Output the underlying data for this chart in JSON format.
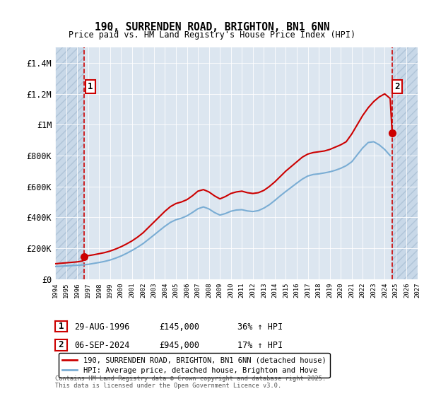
{
  "title": "190, SURRENDEN ROAD, BRIGHTON, BN1 6NN",
  "subtitle": "Price paid vs. HM Land Registry's House Price Index (HPI)",
  "xlim_start": 1994,
  "xlim_end": 2027,
  "ylim_min": 0,
  "ylim_max": 1500000,
  "yticks": [
    0,
    200000,
    400000,
    600000,
    800000,
    1000000,
    1200000,
    1400000
  ],
  "ytick_labels": [
    "£0",
    "£200K",
    "£400K",
    "£600K",
    "£800K",
    "£1M",
    "£1.2M",
    "£1.4M"
  ],
  "bg_color": "#dce6f0",
  "hatch_color": "#c8d8e8",
  "grid_color": "#ffffff",
  "red_line_color": "#cc0000",
  "blue_line_color": "#7aadd4",
  "sale1_year": 1996.66,
  "sale1_price": 145000,
  "sale2_year": 2024.68,
  "sale2_price": 945000,
  "annotation1_label": "1",
  "annotation2_label": "2",
  "legend_red": "190, SURRENDEN ROAD, BRIGHTON, BN1 6NN (detached house)",
  "legend_blue": "HPI: Average price, detached house, Brighton and Hove",
  "table_row1": [
    "1",
    "29-AUG-1996",
    "£145,000",
    "36% ↑ HPI"
  ],
  "table_row2": [
    "2",
    "06-SEP-2024",
    "£945,000",
    "17% ↑ HPI"
  ],
  "footer": "Contains HM Land Registry data © Crown copyright and database right 2025.\nThis data is licensed under the Open Government Licence v3.0.",
  "red_hpi_years": [
    1994.0,
    1994.5,
    1995.0,
    1995.5,
    1996.0,
    1996.5,
    1996.66,
    1997.0,
    1997.5,
    1998.0,
    1998.5,
    1999.0,
    1999.5,
    2000.0,
    2000.5,
    2001.0,
    2001.5,
    2002.0,
    2002.5,
    2003.0,
    2003.5,
    2004.0,
    2004.5,
    2005.0,
    2005.5,
    2006.0,
    2006.5,
    2007.0,
    2007.5,
    2008.0,
    2008.5,
    2009.0,
    2009.5,
    2010.0,
    2010.5,
    2011.0,
    2011.5,
    2012.0,
    2012.5,
    2013.0,
    2013.5,
    2014.0,
    2014.5,
    2015.0,
    2015.5,
    2016.0,
    2016.5,
    2017.0,
    2017.5,
    2018.0,
    2018.5,
    2019.0,
    2019.5,
    2020.0,
    2020.5,
    2021.0,
    2021.5,
    2022.0,
    2022.5,
    2023.0,
    2023.5,
    2024.0,
    2024.5,
    2024.68
  ],
  "red_hpi_values": [
    100000,
    103000,
    106000,
    109000,
    112000,
    118000,
    145000,
    152000,
    158000,
    165000,
    172000,
    182000,
    195000,
    210000,
    228000,
    248000,
    272000,
    300000,
    335000,
    370000,
    405000,
    440000,
    470000,
    490000,
    500000,
    515000,
    540000,
    570000,
    580000,
    565000,
    540000,
    520000,
    535000,
    555000,
    565000,
    570000,
    560000,
    555000,
    560000,
    575000,
    600000,
    630000,
    665000,
    700000,
    730000,
    760000,
    790000,
    810000,
    820000,
    825000,
    830000,
    840000,
    855000,
    870000,
    890000,
    940000,
    1000000,
    1060000,
    1110000,
    1150000,
    1180000,
    1200000,
    1170000,
    945000
  ],
  "blue_hpi_years": [
    1994.0,
    1994.5,
    1995.0,
    1995.5,
    1996.0,
    1996.5,
    1997.0,
    1997.5,
    1998.0,
    1998.5,
    1999.0,
    1999.5,
    2000.0,
    2000.5,
    2001.0,
    2001.5,
    2002.0,
    2002.5,
    2003.0,
    2003.5,
    2004.0,
    2004.5,
    2005.0,
    2005.5,
    2006.0,
    2006.5,
    2007.0,
    2007.5,
    2008.0,
    2008.5,
    2009.0,
    2009.5,
    2010.0,
    2010.5,
    2011.0,
    2011.5,
    2012.0,
    2012.5,
    2013.0,
    2013.5,
    2014.0,
    2014.5,
    2015.0,
    2015.5,
    2016.0,
    2016.5,
    2017.0,
    2017.5,
    2018.0,
    2018.5,
    2019.0,
    2019.5,
    2020.0,
    2020.5,
    2021.0,
    2021.5,
    2022.0,
    2022.5,
    2023.0,
    2023.5,
    2024.0,
    2024.5
  ],
  "blue_hpi_values": [
    82000,
    84000,
    86000,
    88000,
    90000,
    92000,
    96000,
    102000,
    108000,
    115000,
    124000,
    136000,
    150000,
    167000,
    186000,
    207000,
    230000,
    258000,
    286000,
    315000,
    343000,
    368000,
    385000,
    395000,
    410000,
    432000,
    456000,
    468000,
    455000,
    432000,
    415000,
    425000,
    440000,
    448000,
    450000,
    442000,
    438000,
    444000,
    460000,
    482000,
    510000,
    540000,
    568000,
    595000,
    622000,
    648000,
    668000,
    678000,
    682000,
    688000,
    695000,
    705000,
    718000,
    735000,
    760000,
    805000,
    850000,
    885000,
    890000,
    870000,
    840000,
    800000
  ]
}
